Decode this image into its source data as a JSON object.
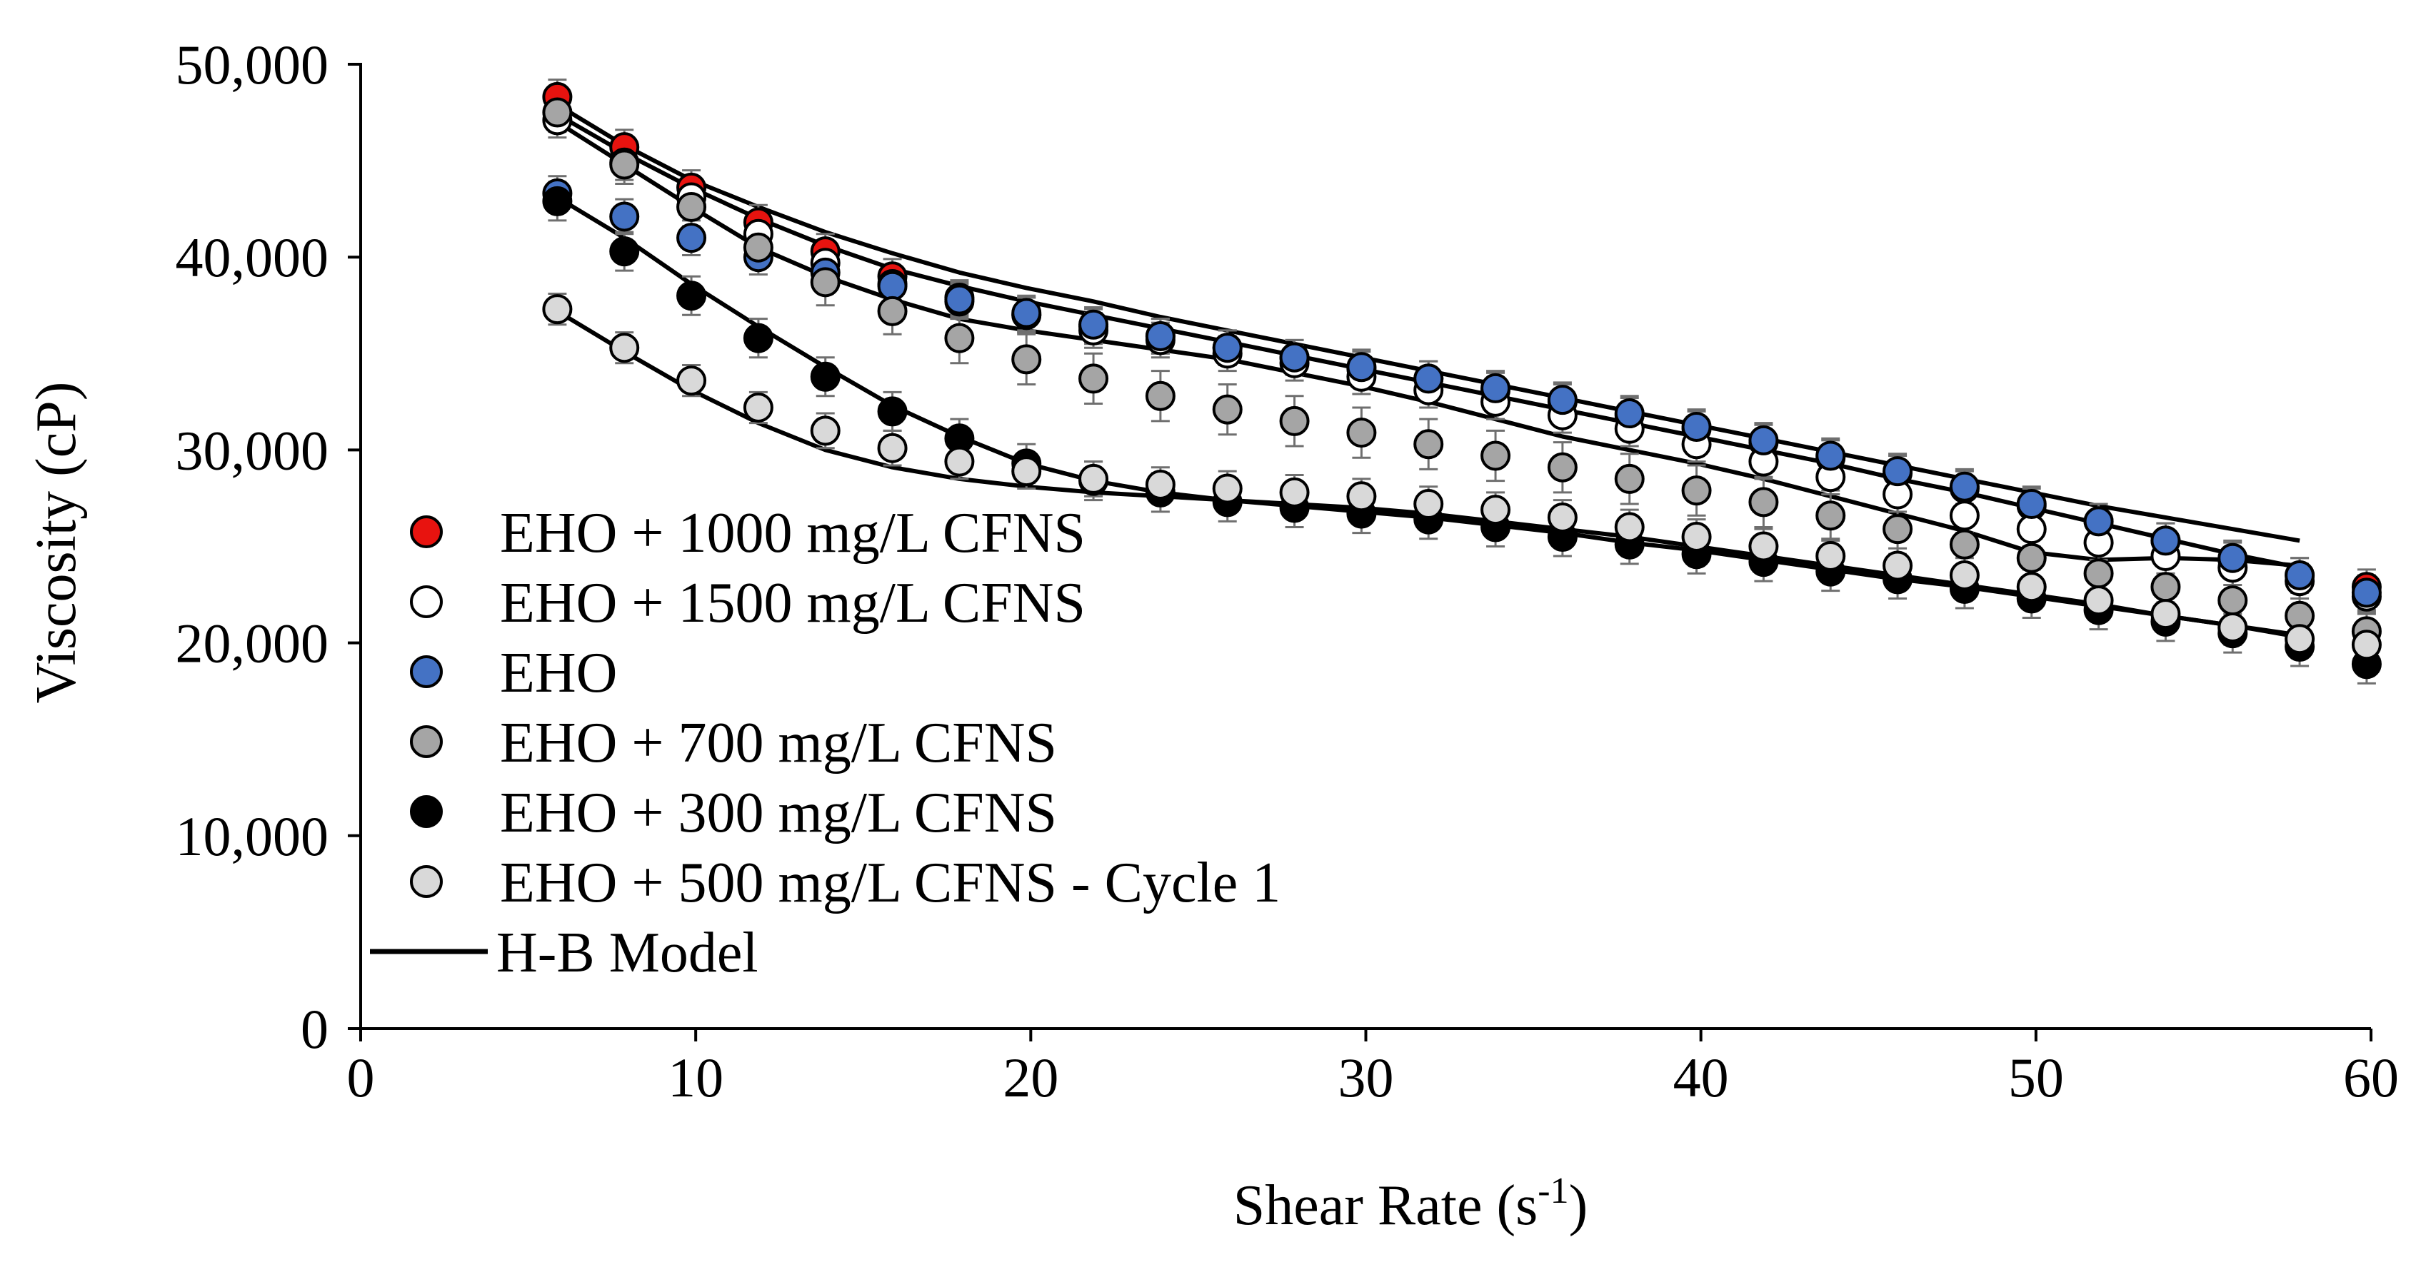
{
  "chart_data": {
    "type": "scatter",
    "title": "",
    "xlabel": "Shear Rate (s",
    "xlabel_sup": "-1",
    "xlabel_tail": ")",
    "ylabel": "Viscosity (cP)",
    "xlim": [
      0,
      60
    ],
    "ylim": [
      0,
      50000
    ],
    "x_ticks": [
      0,
      10,
      20,
      30,
      40,
      50,
      60
    ],
    "y_ticks": [
      0,
      10000,
      20000,
      30000,
      40000,
      50000
    ],
    "x_tick_labels": [
      "0",
      "10",
      "20",
      "30",
      "40",
      "50",
      "60"
    ],
    "y_tick_labels": [
      "0",
      "10,000",
      "20,000",
      "30,000",
      "40,000",
      "50,000"
    ],
    "grid": false,
    "legend_position": "bottom-left",
    "x": [
      5.87,
      7.87,
      9.87,
      11.87,
      13.87,
      15.87,
      17.87,
      19.87,
      21.87,
      23.87,
      25.87,
      27.87,
      29.87,
      31.87,
      33.87,
      35.87,
      37.87,
      39.87,
      41.87,
      43.87,
      45.87,
      47.87,
      49.87,
      51.87,
      53.87,
      55.87,
      57.87,
      59.87
    ],
    "series": [
      {
        "name": "EHO + 1000 mg/L CFNS",
        "color": "#e8130f",
        "values": [
          48300,
          45700,
          43600,
          41800,
          40300,
          39000,
          37900,
          37000,
          36400,
          35900,
          35300,
          34800,
          34200,
          33700,
          33100,
          32500,
          31800,
          31100,
          30400,
          29600,
          28800,
          28000,
          27100,
          26300,
          25300,
          24300,
          23500,
          22900
        ],
        "errors": [
          900,
          900,
          900,
          900,
          900,
          900,
          900,
          900,
          900,
          900,
          900,
          900,
          900,
          900,
          900,
          900,
          900,
          900,
          900,
          900,
          900,
          900,
          900,
          900,
          900,
          900,
          900,
          900
        ]
      },
      {
        "name": "EHO + 1500 mg/L CFNS",
        "color": "#ffffff",
        "values": [
          47100,
          44900,
          43100,
          41200,
          39700,
          38600,
          37700,
          37000,
          36200,
          35700,
          35000,
          34500,
          33800,
          33100,
          32500,
          31800,
          31100,
          30300,
          29400,
          28600,
          27700,
          26600,
          25900,
          25200,
          24500,
          23900,
          23200,
          22400
        ],
        "errors": [
          900,
          900,
          900,
          900,
          900,
          900,
          900,
          900,
          900,
          900,
          900,
          900,
          900,
          900,
          900,
          900,
          900,
          900,
          900,
          900,
          900,
          900,
          900,
          900,
          900,
          900,
          900,
          900
        ]
      },
      {
        "name": "EHO",
        "color": "#4472c4",
        "values": [
          43300,
          42100,
          41000,
          40000,
          39200,
          38500,
          37800,
          37100,
          36500,
          35900,
          35300,
          34800,
          34300,
          33700,
          33200,
          32600,
          31900,
          31200,
          30500,
          29700,
          28900,
          28100,
          27200,
          26300,
          25300,
          24400,
          23500,
          22600
        ],
        "errors": [
          900,
          900,
          900,
          900,
          900,
          900,
          900,
          900,
          900,
          900,
          900,
          900,
          900,
          900,
          900,
          900,
          900,
          900,
          900,
          900,
          900,
          900,
          900,
          900,
          900,
          900,
          900,
          900
        ]
      },
      {
        "name": "EHO + 700 mg/L CFNS",
        "color": "#a5a5a5",
        "values": [
          47500,
          44800,
          42600,
          40500,
          38700,
          37200,
          35800,
          34700,
          33700,
          32800,
          32100,
          31500,
          30900,
          30300,
          29700,
          29100,
          28500,
          27900,
          27300,
          26600,
          25900,
          25100,
          24400,
          23600,
          22900,
          22200,
          21400,
          20600
        ],
        "errors": [
          1000,
          1000,
          1000,
          1000,
          1200,
          1200,
          1300,
          1300,
          1300,
          1300,
          1300,
          1300,
          1300,
          1300,
          1300,
          1300,
          1300,
          1300,
          1300,
          1300,
          1300,
          1300,
          1300,
          1300,
          1300,
          1300,
          1300,
          1000
        ]
      },
      {
        "name": "EHO + 300 mg/L CFNS",
        "color": "#000000",
        "values": [
          42900,
          40300,
          38000,
          35800,
          33800,
          32000,
          30600,
          29300,
          28400,
          27800,
          27300,
          27000,
          26700,
          26400,
          26000,
          25500,
          25100,
          24600,
          24200,
          23700,
          23300,
          22800,
          22300,
          21700,
          21100,
          20500,
          19800,
          18900
        ],
        "errors": [
          1000,
          1000,
          1000,
          1000,
          1000,
          1000,
          1000,
          1000,
          1000,
          1000,
          1000,
          1000,
          1000,
          1000,
          1000,
          1000,
          1000,
          1000,
          1000,
          1000,
          1000,
          1000,
          1000,
          1000,
          1000,
          1000,
          1000,
          1000
        ]
      },
      {
        "name": "EHO + 500 mg/L CFNS - Cycle 1",
        "color": "#d9d9d9",
        "values": [
          37300,
          35300,
          33600,
          32200,
          31000,
          30100,
          29400,
          28900,
          28500,
          28200,
          28000,
          27800,
          27600,
          27200,
          26900,
          26500,
          26000,
          25500,
          25000,
          24500,
          24000,
          23500,
          22900,
          22200,
          21500,
          20800,
          20200,
          19900
        ],
        "errors": [
          800,
          800,
          800,
          800,
          900,
          900,
          900,
          900,
          900,
          900,
          900,
          900,
          900,
          900,
          900,
          900,
          900,
          900,
          900,
          900,
          900,
          900,
          900,
          900,
          900,
          900,
          900,
          900
        ]
      }
    ],
    "model": {
      "name": "H-B Model",
      "color": "#000000",
      "curves": [
        {
          "x": [
            5.87,
            7.87,
            9.87,
            11.87,
            13.87,
            15.87,
            17.87,
            19.87,
            21.87,
            23.87,
            25.87,
            27.87,
            29.87,
            31.87,
            33.87,
            35.87,
            37.87,
            39.87,
            41.87,
            43.87,
            45.87,
            47.87,
            49.87,
            51.87,
            53.87,
            55.87,
            57.87
          ],
          "y": [
            47900,
            45800,
            44000,
            42600,
            41300,
            40200,
            39200,
            38400,
            37700,
            36900,
            36200,
            35500,
            34800,
            34100,
            33400,
            32700,
            32000,
            31300,
            30600,
            29900,
            29200,
            28500,
            27800,
            27100,
            26500,
            25900,
            25300
          ]
        },
        {
          "x": [
            5.87,
            7.87,
            9.87,
            11.87,
            13.87,
            15.87,
            17.87,
            19.87,
            21.87,
            23.87,
            25.87,
            27.87,
            29.87,
            31.87,
            33.87,
            35.87,
            37.87,
            39.87,
            41.87,
            43.87,
            45.87,
            47.87,
            49.87,
            51.87,
            53.87,
            55.87,
            57.87
          ],
          "y": [
            47400,
            45400,
            43600,
            42000,
            40600,
            39400,
            38500,
            37700,
            37000,
            36300,
            35600,
            34900,
            34200,
            33500,
            32800,
            32100,
            31400,
            30700,
            30000,
            29300,
            28500,
            27800,
            27000,
            26200,
            25400,
            24600,
            23900
          ]
        },
        {
          "x": [
            5.87,
            7.87,
            9.87,
            11.87,
            13.87,
            15.87,
            17.87,
            19.87,
            21.87,
            23.87,
            25.87,
            27.87,
            29.87,
            31.87,
            33.87,
            35.87,
            37.87,
            39.87,
            41.87,
            43.87,
            45.87,
            47.87,
            49.87,
            51.87,
            53.87,
            55.87,
            57.87
          ],
          "y": [
            47000,
            44800,
            42600,
            40500,
            39000,
            37800,
            36800,
            36200,
            35700,
            35200,
            34700,
            34000,
            33300,
            32500,
            31600,
            30700,
            30000,
            29300,
            28500,
            27600,
            26700,
            25800,
            24700,
            24300,
            24400,
            24300,
            24000
          ]
        },
        {
          "x": [
            5.87,
            7.87,
            9.87,
            11.87,
            13.87,
            15.87,
            17.87,
            19.87,
            21.87,
            23.87,
            25.87,
            27.87,
            29.87,
            31.87,
            33.87,
            35.87,
            37.87,
            39.87,
            41.87,
            43.87,
            45.87,
            47.87,
            49.87,
            51.87,
            53.87,
            55.87,
            57.87
          ],
          "y": [
            43100,
            41000,
            38600,
            36400,
            34300,
            32300,
            30700,
            29300,
            28400,
            27800,
            27400,
            27100,
            26800,
            26500,
            26100,
            25700,
            25200,
            24800,
            24300,
            23800,
            23300,
            22900,
            22400,
            21900,
            21400,
            20900,
            20300
          ]
        },
        {
          "x": [
            5.87,
            7.87,
            9.87,
            11.87,
            13.87,
            15.87,
            17.87,
            19.87,
            21.87,
            23.87,
            25.87,
            27.87,
            29.87,
            31.87,
            33.87,
            35.87,
            37.87,
            39.87,
            41.87,
            43.87,
            45.87,
            47.87,
            49.87,
            51.87,
            53.87,
            55.87,
            57.87
          ],
          "y": [
            37200,
            35100,
            33100,
            31400,
            30000,
            29100,
            28500,
            28100,
            27800,
            27600,
            27400,
            27200,
            27000,
            26700,
            26300,
            25900,
            25500,
            25000,
            24500,
            24000,
            23500,
            23000,
            22500,
            22000,
            21400,
            20900,
            20400
          ]
        }
      ]
    }
  }
}
